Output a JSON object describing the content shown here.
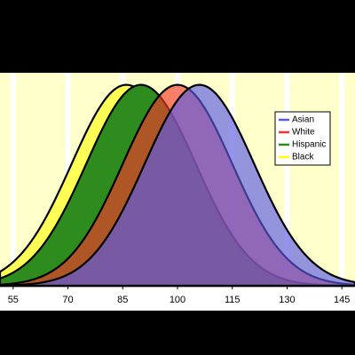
{
  "chart_data": {
    "type": "normal-curves",
    "xlim": [
      51.4,
      148.6
    ],
    "xticks": [
      55,
      70,
      85,
      100,
      115,
      130,
      145
    ],
    "ylim": [
      0,
      1.06
    ],
    "grid": true,
    "legend": "upper-right",
    "series": [
      {
        "name": "Asian",
        "color": "#5a5ae6",
        "mean": 106,
        "sd": 15
      },
      {
        "name": "White",
        "color": "#f23a2a",
        "mean": 100,
        "sd": 15
      },
      {
        "name": "Hispanic",
        "color": "#2e8b1e",
        "mean": 90,
        "sd": 15
      },
      {
        "name": "Black",
        "color": "#ffff55",
        "mean": 86,
        "sd": 15
      }
    ]
  }
}
